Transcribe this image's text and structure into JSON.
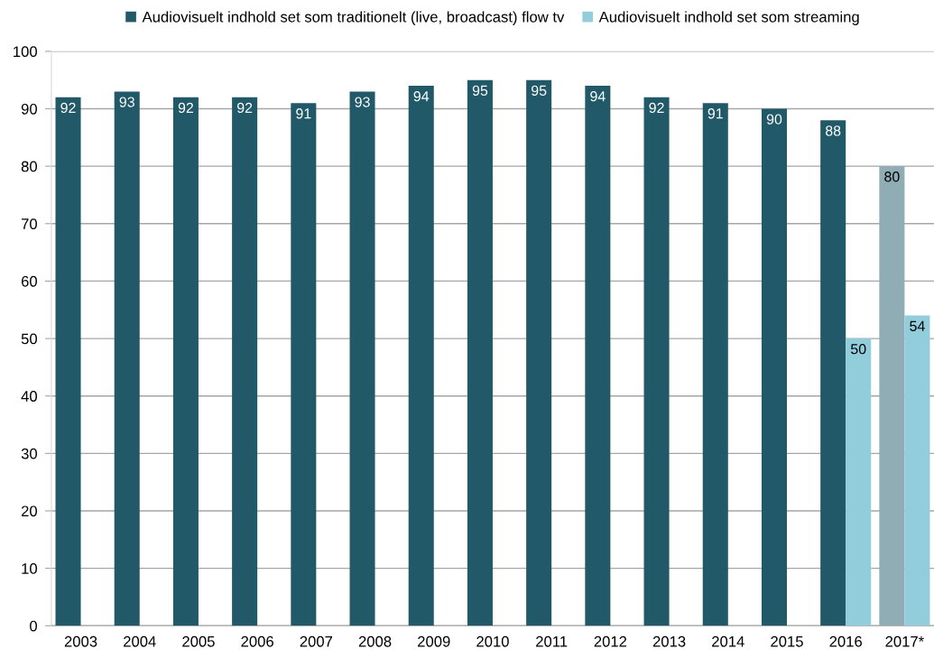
{
  "chart_data": {
    "type": "bar",
    "categories": [
      "2003",
      "2004",
      "2005",
      "2006",
      "2007",
      "2008",
      "2009",
      "2010",
      "2011",
      "2012",
      "2013",
      "2014",
      "2015",
      "2016",
      "2017*"
    ],
    "series": [
      {
        "name": "Audiovisuelt indhold set som traditionelt (live, broadcast) flow tv",
        "color": "#215968",
        "colors": [
          "#215968",
          "#215968",
          "#215968",
          "#215968",
          "#215968",
          "#215968",
          "#215968",
          "#215968",
          "#215968",
          "#215968",
          "#215968",
          "#215968",
          "#215968",
          "#215968",
          "#90acb4"
        ],
        "values": [
          92,
          93,
          92,
          92,
          91,
          93,
          94,
          95,
          95,
          94,
          92,
          91,
          90,
          88,
          80
        ]
      },
      {
        "name": "Audiovisuelt indhold set som streaming",
        "color": "#92cddc",
        "values": [
          null,
          null,
          null,
          null,
          null,
          null,
          null,
          null,
          null,
          null,
          null,
          null,
          null,
          50,
          54
        ]
      }
    ],
    "ylim": [
      0,
      100
    ],
    "yticks": [
      0,
      10,
      20,
      30,
      40,
      50,
      60,
      70,
      80,
      90,
      100
    ],
    "grid": "y",
    "legend": "top",
    "data_labels": true
  }
}
